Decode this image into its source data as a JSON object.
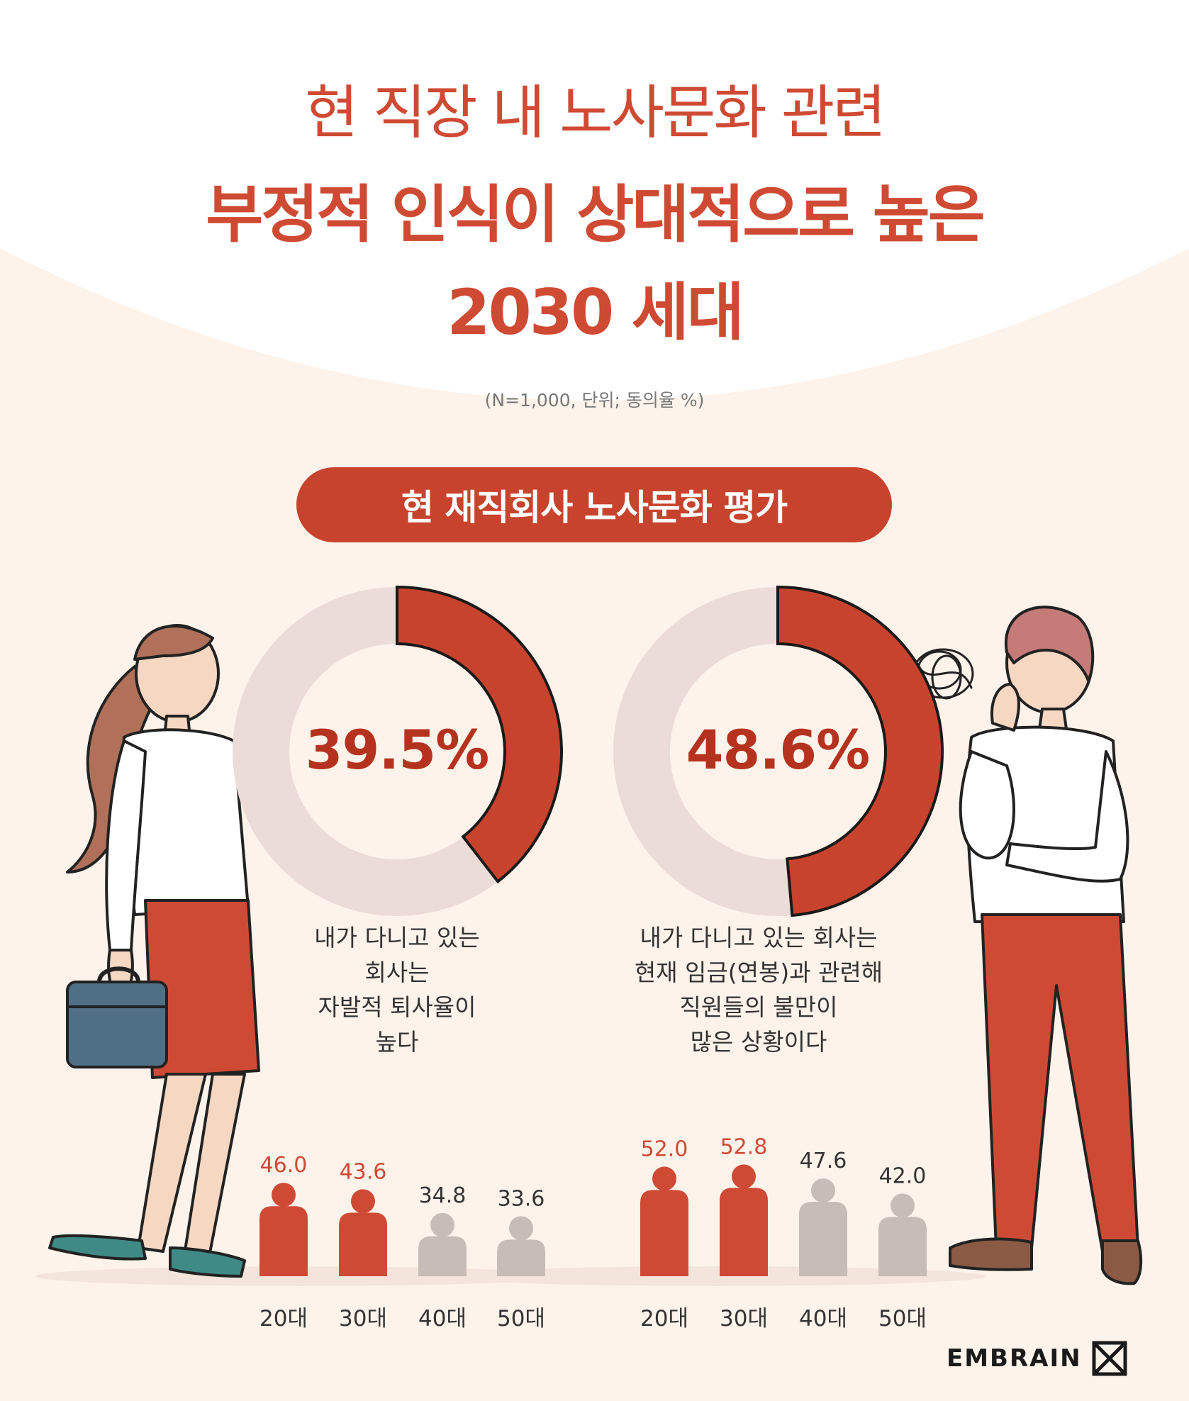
{
  "title": {
    "line1": "현 직장 내 노사문화 관련",
    "line2": "부정적 인식이 상대적으로 높은",
    "line3": "2030 세대"
  },
  "note": "(N=1,000, 단위; 동의율 %)",
  "section_title": "현 재직회사 노사문화 평가",
  "colors": {
    "accent": "#c8432d",
    "donut_track": "#ebdcd8",
    "highlight_bar": "#cf4a35",
    "muted_bar": "#c8bcb6",
    "background": "#fdf3ea"
  },
  "chart_data": [
    {
      "type": "pie",
      "total": "39.5%",
      "values": [
        39.5,
        60.5
      ],
      "caption": [
        "내가 다니고 있는",
        "회사는",
        "자발적 퇴사율이",
        "높다"
      ]
    },
    {
      "type": "bar",
      "categories": [
        "20대",
        "30대",
        "40대",
        "50대"
      ],
      "values": [
        46.0,
        43.6,
        34.8,
        33.6
      ],
      "labels": [
        "46.0",
        "43.6",
        "34.8",
        "33.6"
      ],
      "highlight": [
        true,
        true,
        false,
        false
      ]
    },
    {
      "type": "pie",
      "total": "48.6%",
      "values": [
        48.6,
        51.4
      ],
      "caption": [
        "내가 다니고 있는 회사는",
        "현재 임금(연봉)과 관련해",
        "직원들의 불만이",
        "많은 상황이다"
      ]
    },
    {
      "type": "bar",
      "categories": [
        "20대",
        "30대",
        "40대",
        "50대"
      ],
      "values": [
        52.0,
        52.8,
        47.6,
        42.0
      ],
      "labels": [
        "52.0",
        "52.8",
        "47.6",
        "42.0"
      ],
      "highlight": [
        true,
        true,
        false,
        false
      ]
    }
  ],
  "logo": {
    "text": "EMBRAIN",
    "icon": "embrain-logo-icon"
  }
}
